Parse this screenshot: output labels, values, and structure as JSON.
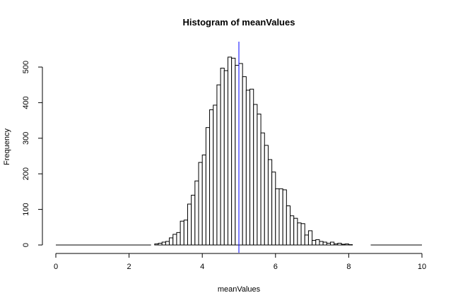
{
  "chart_data": {
    "type": "bar",
    "title": "Histogram of meanValues",
    "xlabel": "meanValues",
    "ylabel": "Frequency",
    "xlim": [
      0,
      10
    ],
    "ylim": [
      0,
      560
    ],
    "bin_width": 0.1,
    "bin_start": 2.6,
    "x_ticks": [
      0,
      2,
      4,
      6,
      8,
      10
    ],
    "y_ticks": [
      0,
      100,
      200,
      300,
      400,
      500
    ],
    "values": [
      0,
      3,
      5,
      8,
      10,
      20,
      30,
      35,
      67,
      70,
      115,
      140,
      180,
      232,
      253,
      330,
      380,
      393,
      450,
      497,
      490,
      528,
      525,
      505,
      510,
      473,
      435,
      438,
      395,
      368,
      315,
      280,
      240,
      205,
      158,
      158,
      155,
      110,
      82,
      75,
      62,
      60,
      28,
      40,
      13,
      15,
      10,
      8,
      5,
      8,
      3,
      5,
      2,
      3,
      1,
      0,
      0,
      0,
      0,
      0
    ],
    "mean_line": {
      "x": 5.0,
      "color": "#0000ff"
    },
    "bar_fill": "#ffffff",
    "bar_stroke": "#000000",
    "grid": false
  }
}
